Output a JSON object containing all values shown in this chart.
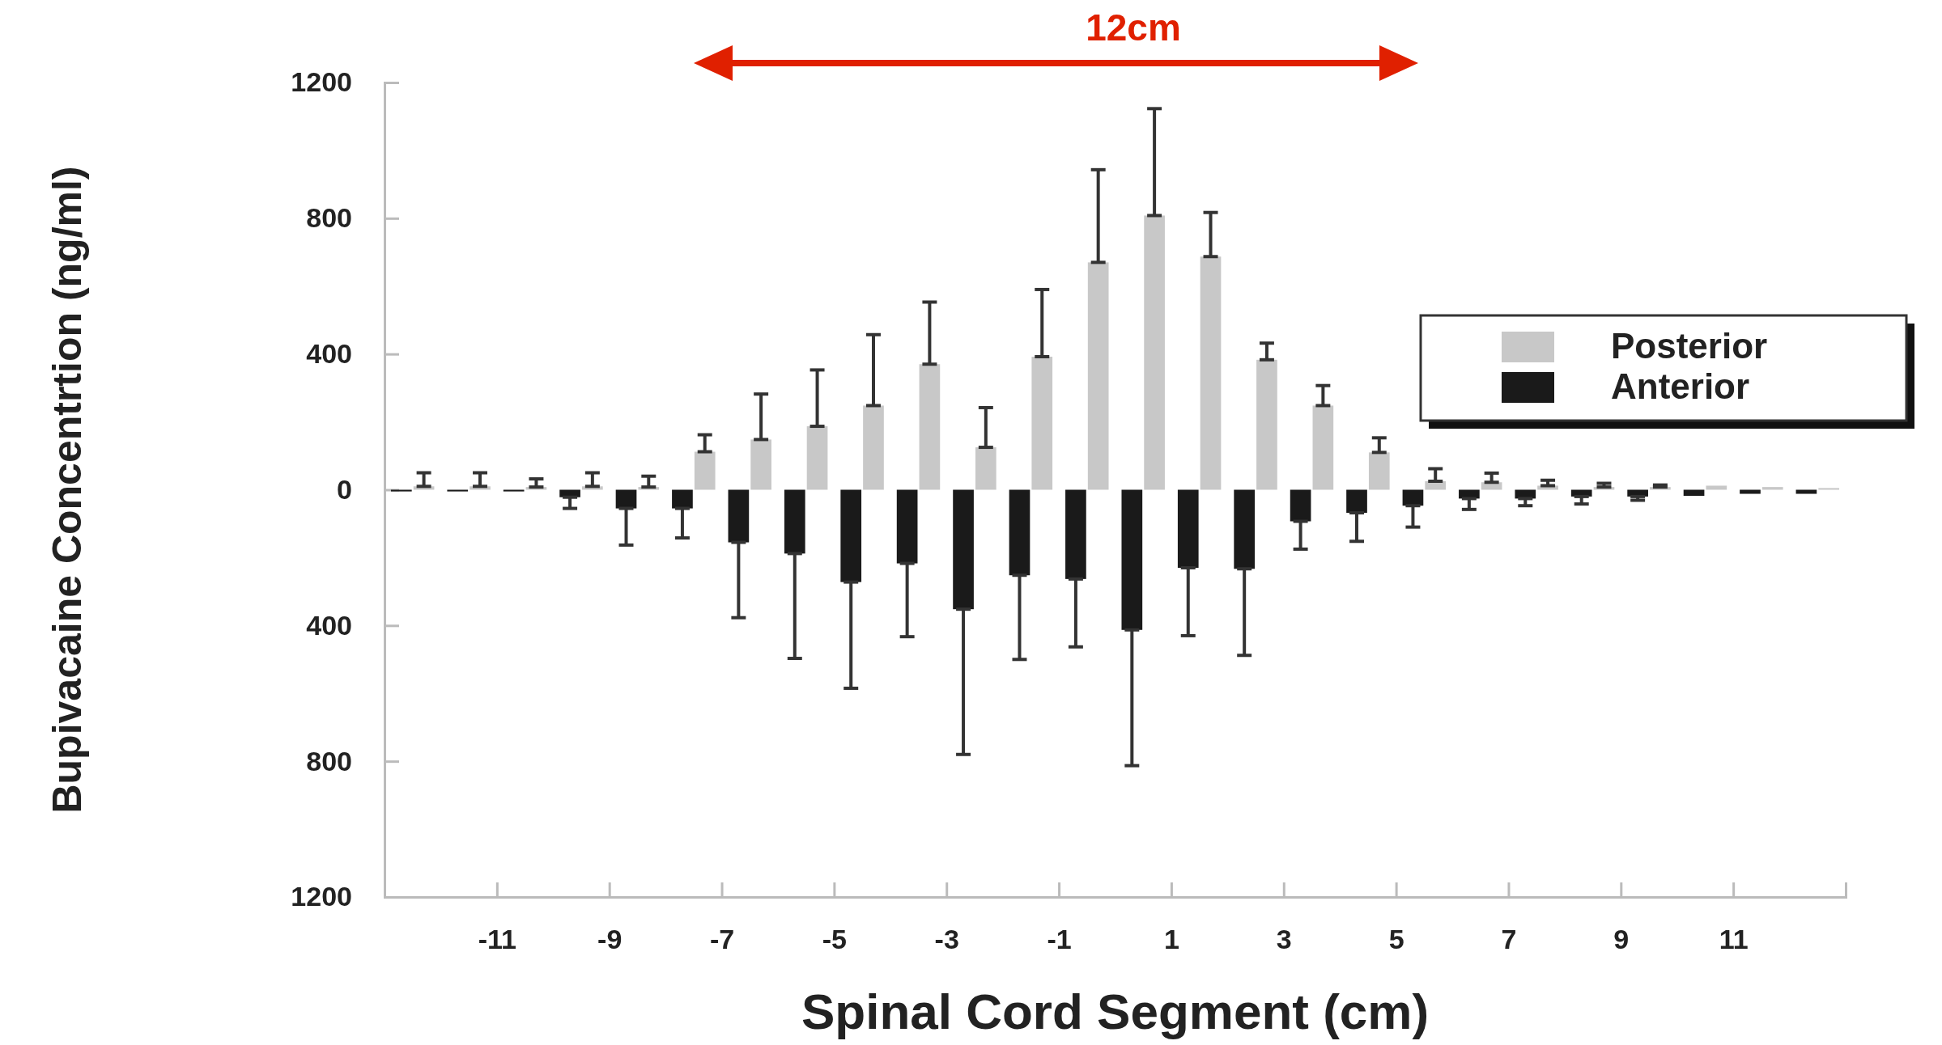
{
  "chart_data": {
    "type": "bar",
    "xlabel": "Spinal Cord Segment (cm)",
    "ylabel": "Bupivacaine Concentrtion (ng/ml)",
    "annotations": [
      "12cm"
    ],
    "series": [
      {
        "name": "Posterior",
        "color": "#c8c8c8",
        "x": [
          -12.3,
          -11.3,
          -10.3,
          -9.3,
          -8.3,
          -7.3,
          -6.3,
          -5.3,
          -4.3,
          -3.3,
          -2.3,
          -1.3,
          -0.3,
          0.7,
          1.7,
          2.7,
          3.7,
          4.7,
          5.7,
          6.7,
          7.7,
          8.7,
          9.7,
          10.7,
          11.7,
          12.7
        ],
        "values": [
          10,
          10,
          8,
          10,
          8,
          112,
          148,
          187,
          248,
          370,
          125,
          392,
          670,
          808,
          687,
          383,
          248,
          110,
          25,
          22,
          12,
          8,
          8,
          12,
          8,
          5
        ],
        "errors": [
          [
            10,
            50
          ],
          [
            10,
            50
          ],
          [
            8,
            32
          ],
          [
            10,
            50
          ],
          [
            8,
            40
          ],
          [
            112,
            162
          ],
          [
            148,
            282
          ],
          [
            187,
            353
          ],
          [
            248,
            457
          ],
          [
            370,
            553
          ],
          [
            125,
            242
          ],
          [
            392,
            590
          ],
          [
            670,
            943
          ],
          [
            808,
            1123
          ],
          [
            687,
            817
          ],
          [
            383,
            432
          ],
          [
            248,
            307
          ],
          [
            110,
            153
          ],
          [
            25,
            62
          ],
          [
            22,
            49
          ],
          [
            12,
            28
          ],
          [
            8,
            19
          ],
          [
            8,
            14
          ],
          null,
          null,
          null
        ]
      },
      {
        "name": "Anterior",
        "color": "#1a1a1a",
        "x": [
          -12.7,
          -11.7,
          -10.7,
          -9.7,
          -8.7,
          -7.7,
          -6.7,
          -5.7,
          -4.7,
          -3.7,
          -2.7,
          -1.7,
          -0.7,
          0.3,
          1.3,
          2.3,
          3.3,
          4.3,
          5.3,
          6.3,
          7.3,
          8.3,
          9.3,
          10.3,
          11.3,
          12.3
        ],
        "values": [
          -5,
          -5,
          -5,
          -22,
          -55,
          -55,
          -155,
          -188,
          -272,
          -217,
          -352,
          -252,
          -263,
          -413,
          -230,
          -233,
          -93,
          -68,
          -47,
          -26,
          -26,
          -20,
          -20,
          -18,
          -12,
          -12
        ],
        "errors": [
          null,
          null,
          null,
          [
            -55,
            -22
          ],
          [
            -163,
            -55
          ],
          [
            -142,
            -55
          ],
          [
            -377,
            -155
          ],
          [
            -497,
            -188
          ],
          [
            -585,
            -272
          ],
          [
            -433,
            -217
          ],
          [
            -780,
            -352
          ],
          [
            -500,
            -252
          ],
          [
            -463,
            -263
          ],
          [
            -813,
            -413
          ],
          [
            -430,
            -230
          ],
          [
            -488,
            -233
          ],
          [
            -175,
            -93
          ],
          [
            -152,
            -68
          ],
          [
            -110,
            -47
          ],
          [
            -58,
            -26
          ],
          [
            -47,
            -26
          ],
          [
            -42,
            -20
          ],
          [
            -31,
            -20
          ],
          null,
          null,
          null
        ]
      }
    ],
    "xlim": [
      -13,
      13
    ],
    "xticks": [
      -11,
      -9,
      -7,
      -5,
      -3,
      -1,
      1,
      3,
      5,
      7,
      9,
      11
    ],
    "ylim": [
      -1200,
      1200
    ],
    "yticks": [
      {
        "value": -1200,
        "label": "1200"
      },
      {
        "value": -800,
        "label": "800"
      },
      {
        "value": -400,
        "label": "400"
      },
      0,
      400,
      800,
      1200
    ],
    "legend": "right"
  }
}
